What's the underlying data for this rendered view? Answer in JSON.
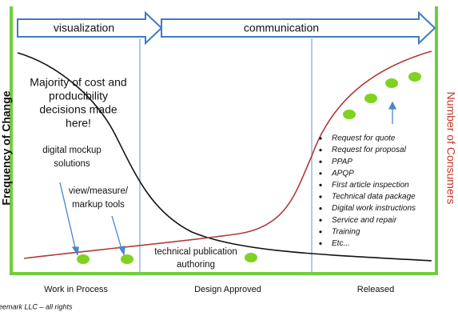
{
  "phases_top": {
    "left": "visualization",
    "right": "communication"
  },
  "axes": {
    "left": "Frequency of Change",
    "right": "Number of Consumers"
  },
  "annotations": {
    "cost": [
      "Majority of cost and",
      "producibility",
      "decisions made",
      "here!"
    ],
    "mockup": [
      "digital mockup",
      "solutions"
    ],
    "markup": [
      "view/measure/",
      "markup tools"
    ],
    "publication": [
      "technical publication",
      "authoring"
    ]
  },
  "consumers": [
    "Request for quote",
    "Request for proposal",
    "PPAP",
    "APQP",
    "First article inspection",
    "Technical data package",
    "Digital work instructions",
    "Service and repair",
    "Training",
    "Etc..."
  ],
  "phases_bottom": [
    "Work in Process",
    "Design Approved",
    "Released"
  ],
  "footer": "eemark LLC – all rights"
}
